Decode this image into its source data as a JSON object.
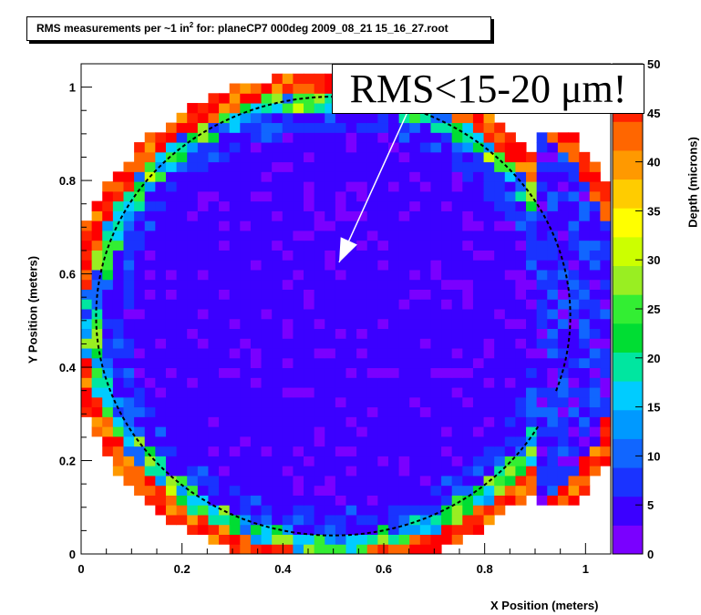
{
  "chart_data": {
    "type": "heatmap",
    "title_text": "RMS measurements per ~1 in",
    "title_sup": "2",
    "title_tail": " for: planeCP7 000deg 2009_08_21 15_16_27.root",
    "xlabel": "X Position (meters)",
    "ylabel": "Y Position (meters)",
    "zlabel": "Depth (microns)",
    "annotation": "RMS<15-20 μm!",
    "xlim": [
      0,
      1.05
    ],
    "ylim": [
      0,
      1.05
    ],
    "zlim": [
      0,
      50
    ],
    "x_ticks": [
      "0",
      "0.2",
      "0.4",
      "0.6",
      "0.8",
      "1"
    ],
    "y_ticks": [
      "0",
      "0.2",
      "0.4",
      "0.6",
      "0.8",
      "1"
    ],
    "z_ticks": [
      "0",
      "5",
      "10",
      "15",
      "20",
      "25",
      "30",
      "35",
      "40",
      "45",
      "50"
    ],
    "grid": false,
    "cells_description_values": {
      "bins_x": 50,
      "bins_y": 50,
      "center": [
        0.5,
        0.5
      ],
      "radius_outer": 0.5,
      "edge_band_depth": 0.08,
      "edge_value": 48,
      "interior_value": 4
    },
    "dashed_circle": {
      "center": [
        0.5,
        0.51
      ],
      "radius": 0.47
    },
    "colors": {
      "palette": [
        "#7a00ff",
        "#3b00ff",
        "#1a33ff",
        "#1166ff",
        "#0099ff",
        "#00ccff",
        "#00e6a0",
        "#00dd33",
        "#33ee33",
        "#99ee22",
        "#ccff00",
        "#ffff00",
        "#ffcc00",
        "#ff9900",
        "#ff6600",
        "#ff2200",
        "#ff0000"
      ]
    }
  }
}
